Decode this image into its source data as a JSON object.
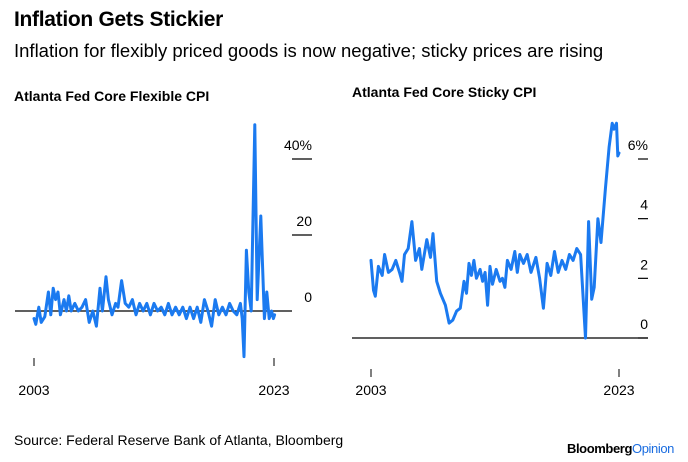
{
  "title": "Inflation Gets Stickier",
  "subtitle": "Inflation for flexibly priced goods is now negative; sticky prices are rising",
  "source": "Source: Federal Reserve Bank of Atlanta, Bloomberg",
  "logo": {
    "brand": "Bloomberg",
    "suffix": "Opinion"
  },
  "colors": {
    "line": "#1b7af0",
    "axis": "#000000"
  },
  "chart_data": [
    {
      "type": "line",
      "title": "Atlanta Fed Core Flexible CPI",
      "xlabel": "",
      "ylabel": "",
      "xlim": [
        2003,
        2023
      ],
      "ylim": [
        -14,
        50
      ],
      "x_ticks": [
        {
          "value": 2003,
          "label": "2003"
        },
        {
          "value": 2023,
          "label": "2023"
        }
      ],
      "y_ticks": [
        {
          "value": 0,
          "label": "0"
        },
        {
          "value": 20,
          "label": "20"
        },
        {
          "value": 40,
          "label": "40%"
        }
      ],
      "series": [
        {
          "name": "Flexible CPI",
          "points": [
            [
              2003.0,
              -2
            ],
            [
              2003.15,
              -3.5
            ],
            [
              2003.4,
              1
            ],
            [
              2003.6,
              -3
            ],
            [
              2003.9,
              -1.5
            ],
            [
              2004.2,
              5
            ],
            [
              2004.4,
              -1
            ],
            [
              2004.6,
              6
            ],
            [
              2004.8,
              3
            ],
            [
              2005.0,
              5
            ],
            [
              2005.2,
              -1
            ],
            [
              2005.5,
              3
            ],
            [
              2005.7,
              0
            ],
            [
              2005.9,
              4
            ],
            [
              2006.1,
              0
            ],
            [
              2006.4,
              2
            ],
            [
              2006.7,
              0
            ],
            [
              2007.0,
              1
            ],
            [
              2007.3,
              3
            ],
            [
              2007.6,
              -3
            ],
            [
              2007.9,
              0
            ],
            [
              2008.2,
              -4
            ],
            [
              2008.5,
              6
            ],
            [
              2008.7,
              0
            ],
            [
              2009.0,
              9
            ],
            [
              2009.2,
              3
            ],
            [
              2009.5,
              -1
            ],
            [
              2009.8,
              2
            ],
            [
              2010.0,
              1
            ],
            [
              2010.3,
              8
            ],
            [
              2010.6,
              2
            ],
            [
              2010.9,
              1
            ],
            [
              2011.2,
              3
            ],
            [
              2011.5,
              -1
            ],
            [
              2011.8,
              2
            ],
            [
              2012.1,
              0
            ],
            [
              2012.4,
              2
            ],
            [
              2012.7,
              -1
            ],
            [
              2013.0,
              2
            ],
            [
              2013.3,
              0
            ],
            [
              2013.6,
              1
            ],
            [
              2013.9,
              -1
            ],
            [
              2014.2,
              2
            ],
            [
              2014.5,
              -1
            ],
            [
              2014.8,
              1
            ],
            [
              2015.1,
              -1
            ],
            [
              2015.4,
              1
            ],
            [
              2015.7,
              -2
            ],
            [
              2016.0,
              1
            ],
            [
              2016.3,
              -2
            ],
            [
              2016.6,
              1
            ],
            [
              2016.9,
              -3
            ],
            [
              2017.2,
              3
            ],
            [
              2017.5,
              0
            ],
            [
              2017.8,
              -4
            ],
            [
              2018.1,
              3
            ],
            [
              2018.4,
              -1
            ],
            [
              2018.7,
              1
            ],
            [
              2019.0,
              -1
            ],
            [
              2019.3,
              2
            ],
            [
              2019.6,
              0
            ],
            [
              2019.9,
              -1
            ],
            [
              2020.2,
              2
            ],
            [
              2020.35,
              -2
            ],
            [
              2020.5,
              -12
            ],
            [
              2020.7,
              16
            ],
            [
              2020.9,
              5
            ],
            [
              2021.1,
              0
            ],
            [
              2021.4,
              49
            ],
            [
              2021.6,
              3
            ],
            [
              2021.9,
              25
            ],
            [
              2022.2,
              -2
            ],
            [
              2022.4,
              5
            ],
            [
              2022.6,
              -2
            ],
            [
              2022.8,
              0
            ],
            [
              2022.95,
              -2
            ],
            [
              2023.05,
              -1
            ]
          ]
        }
      ]
    },
    {
      "type": "line",
      "title": "Atlanta Fed Core Sticky CPI",
      "xlabel": "",
      "ylabel": "",
      "xlim": [
        2003,
        2023
      ],
      "ylim": [
        -0.5,
        7.5
      ],
      "x_ticks": [
        {
          "value": 2003,
          "label": "2003"
        },
        {
          "value": 2023,
          "label": "2023"
        }
      ],
      "y_ticks": [
        {
          "value": 0,
          "label": "0"
        },
        {
          "value": 2,
          "label": "2"
        },
        {
          "value": 4,
          "label": "4"
        },
        {
          "value": 6,
          "label": "6%"
        }
      ],
      "series": [
        {
          "name": "Sticky CPI",
          "points": [
            [
              2003.0,
              2.6
            ],
            [
              2003.2,
              1.6
            ],
            [
              2003.35,
              1.4
            ],
            [
              2003.6,
              2.4
            ],
            [
              2003.9,
              2.1
            ],
            [
              2004.1,
              2.8
            ],
            [
              2004.4,
              2.2
            ],
            [
              2004.7,
              2.3
            ],
            [
              2005.0,
              2.6
            ],
            [
              2005.3,
              2.2
            ],
            [
              2005.5,
              1.9
            ],
            [
              2005.7,
              2.8
            ],
            [
              2006.0,
              3.0
            ],
            [
              2006.3,
              3.9
            ],
            [
              2006.6,
              2.6
            ],
            [
              2006.9,
              3.0
            ],
            [
              2007.1,
              2.3
            ],
            [
              2007.5,
              3.3
            ],
            [
              2007.8,
              2.7
            ],
            [
              2008.0,
              3.5
            ],
            [
              2008.3,
              1.9
            ],
            [
              2008.6,
              1.5
            ],
            [
              2009.0,
              1.1
            ],
            [
              2009.3,
              0.5
            ],
            [
              2009.6,
              0.6
            ],
            [
              2009.9,
              0.9
            ],
            [
              2010.2,
              1.0
            ],
            [
              2010.5,
              1.9
            ],
            [
              2010.7,
              1.5
            ],
            [
              2010.9,
              2.5
            ],
            [
              2011.1,
              2.1
            ],
            [
              2011.3,
              2.6
            ],
            [
              2011.5,
              2.0
            ],
            [
              2011.8,
              2.3
            ],
            [
              2012.0,
              1.9
            ],
            [
              2012.2,
              2.2
            ],
            [
              2012.4,
              1.1
            ],
            [
              2012.6,
              2.4
            ],
            [
              2012.8,
              1.8
            ],
            [
              2013.1,
              2.3
            ],
            [
              2013.4,
              1.9
            ],
            [
              2013.6,
              2.0
            ],
            [
              2013.8,
              1.7
            ],
            [
              2014.0,
              2.6
            ],
            [
              2014.3,
              2.3
            ],
            [
              2014.6,
              2.9
            ],
            [
              2014.8,
              2.2
            ],
            [
              2015.0,
              2.8
            ],
            [
              2015.3,
              2.5
            ],
            [
              2015.6,
              2.8
            ],
            [
              2015.9,
              2.2
            ],
            [
              2016.3,
              2.7
            ],
            [
              2016.6,
              2.0
            ],
            [
              2016.9,
              1.0
            ],
            [
              2017.2,
              2.5
            ],
            [
              2017.5,
              2.1
            ],
            [
              2017.8,
              2.9
            ],
            [
              2018.1,
              2.2
            ],
            [
              2018.4,
              2.6
            ],
            [
              2018.7,
              2.3
            ],
            [
              2019.0,
              2.8
            ],
            [
              2019.3,
              2.6
            ],
            [
              2019.6,
              3.0
            ],
            [
              2019.9,
              2.8
            ],
            [
              2020.3,
              0.0
            ],
            [
              2020.55,
              3.9
            ],
            [
              2020.8,
              1.3
            ],
            [
              2021.0,
              1.7
            ],
            [
              2021.3,
              4.0
            ],
            [
              2021.55,
              3.2
            ],
            [
              2021.9,
              5.0
            ],
            [
              2022.2,
              6.4
            ],
            [
              2022.45,
              7.2
            ],
            [
              2022.6,
              7.0
            ],
            [
              2022.8,
              7.2
            ],
            [
              2022.9,
              6.1
            ],
            [
              2023.0,
              6.2
            ]
          ]
        }
      ]
    }
  ]
}
